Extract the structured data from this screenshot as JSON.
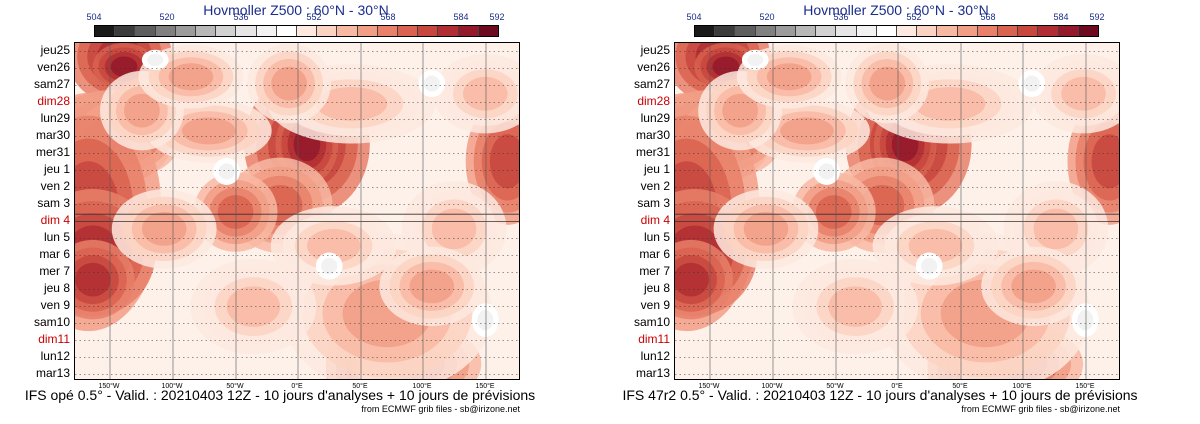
{
  "chart_data": [
    {
      "type": "heatmap",
      "title": "Hovmoller Z500 : 60°N - 30°N",
      "footer": "IFS opé 0.5° - Valid. : 20210403 12Z - 10 jours d'analyses + 10 jours de prévisions",
      "credit": "from ECMWF grib files - sb@irizone.net",
      "colorbar_ticks": [
        "504",
        "520",
        "536",
        "552",
        "568",
        "584",
        "592"
      ],
      "colorbar_colors": [
        "#1a1a1a",
        "#3c3c3c",
        "#5e5e5e",
        "#808080",
        "#9c9c9c",
        "#b8b8b8",
        "#d2d2d2",
        "#e6e6e6",
        "#f2f2f2",
        "#ffffff",
        "#fde9df",
        "#fbd3c2",
        "#f8b9a3",
        "#f29d86",
        "#e8806a",
        "#d96350",
        "#c7473e",
        "#b02e33",
        "#94192b",
        "#6e0a20"
      ],
      "y_labels": [
        "jeu25",
        "ven26",
        "sam27",
        "dim28",
        "lun29",
        "mar30",
        "mer31",
        "jeu 1",
        "ven 2",
        "sam 3",
        "dim 4",
        "lun 5",
        "mar 6",
        "mer 7",
        "jeu 8",
        "ven 9",
        "sam10",
        "dim11",
        "lun12",
        "mar13"
      ],
      "weekend_labels": [
        "dim28",
        "dim 4",
        "dim11"
      ],
      "x_labels": [
        "150°W",
        "100°W",
        "50°W",
        "0°E",
        "50°E",
        "100°E",
        "150°E"
      ]
    },
    {
      "type": "heatmap",
      "title": "Hovmoller Z500 : 60°N - 30°N",
      "footer": "IFS 47r2 0.5° - Valid. : 20210403 12Z - 10 jours d'analyses + 10 jours de prévisions",
      "credit": "from ECMWF grib files - sb@irizone.net",
      "colorbar_ticks": [
        "504",
        "520",
        "536",
        "552",
        "568",
        "584",
        "592"
      ],
      "colorbar_colors": [
        "#1a1a1a",
        "#3c3c3c",
        "#5e5e5e",
        "#808080",
        "#9c9c9c",
        "#b8b8b8",
        "#d2d2d2",
        "#e6e6e6",
        "#f2f2f2",
        "#ffffff",
        "#fde9df",
        "#fbd3c2",
        "#f8b9a3",
        "#f29d86",
        "#e8806a",
        "#d96350",
        "#c7473e",
        "#b02e33",
        "#94192b",
        "#6e0a20"
      ],
      "y_labels": [
        "jeu25",
        "ven26",
        "sam27",
        "dim28",
        "lun29",
        "mar30",
        "mer31",
        "jeu 1",
        "ven 2",
        "sam 3",
        "dim 4",
        "lun 5",
        "mar 6",
        "mer 7",
        "jeu 8",
        "ven 9",
        "sam10",
        "dim11",
        "lun12",
        "mar13"
      ],
      "weekend_labels": [
        "dim28",
        "dim 4",
        "dim11"
      ],
      "x_labels": [
        "150°W",
        "100°W",
        "50°W",
        "0°E",
        "50°E",
        "100°E",
        "150°E"
      ]
    }
  ]
}
